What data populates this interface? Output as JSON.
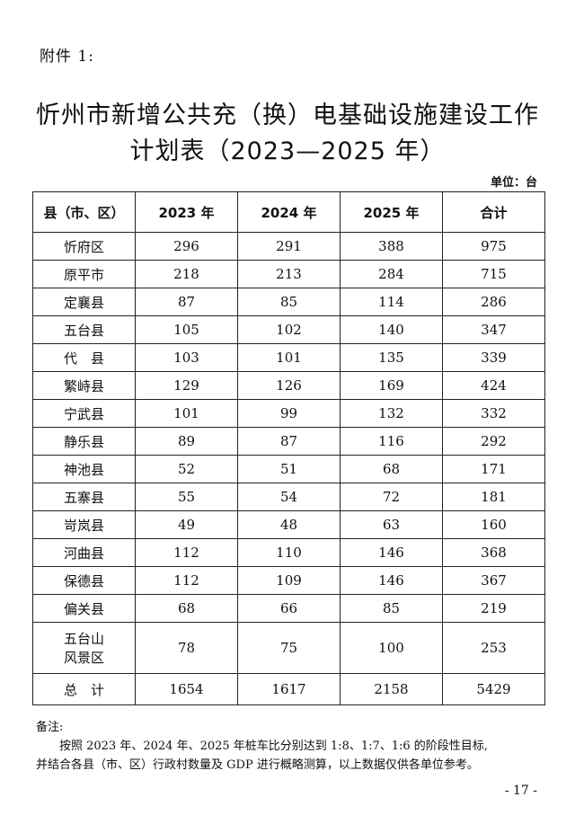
{
  "attachment_label": "附件 1:",
  "title_line1": "忻州市新增公共充（换）电基础设施建设工作",
  "title_line2": "计划表（2023—2025 年）",
  "unit": "单位：台",
  "table": {
    "headers": [
      "县（市、区）",
      "2023 年",
      "2024 年",
      "2025 年",
      "合计"
    ],
    "rows": [
      {
        "name": "忻府区",
        "y2023": "296",
        "y2024": "291",
        "y2025": "388",
        "total": "975"
      },
      {
        "name": "原平市",
        "y2023": "218",
        "y2024": "213",
        "y2025": "284",
        "total": "715"
      },
      {
        "name": "定襄县",
        "y2023": "87",
        "y2024": "85",
        "y2025": "114",
        "total": "286"
      },
      {
        "name": "五台县",
        "y2023": "105",
        "y2024": "102",
        "y2025": "140",
        "total": "347"
      },
      {
        "name": "代　县",
        "y2023": "103",
        "y2024": "101",
        "y2025": "135",
        "total": "339"
      },
      {
        "name": "繁峙县",
        "y2023": "129",
        "y2024": "126",
        "y2025": "169",
        "total": "424"
      },
      {
        "name": "宁武县",
        "y2023": "101",
        "y2024": "99",
        "y2025": "132",
        "total": "332"
      },
      {
        "name": "静乐县",
        "y2023": "89",
        "y2024": "87",
        "y2025": "116",
        "total": "292"
      },
      {
        "name": "神池县",
        "y2023": "52",
        "y2024": "51",
        "y2025": "68",
        "total": "171"
      },
      {
        "name": "五寨县",
        "y2023": "55",
        "y2024": "54",
        "y2025": "72",
        "total": "181"
      },
      {
        "name": "岢岚县",
        "y2023": "49",
        "y2024": "48",
        "y2025": "63",
        "total": "160"
      },
      {
        "name": "河曲县",
        "y2023": "112",
        "y2024": "110",
        "y2025": "146",
        "total": "368"
      },
      {
        "name": "保德县",
        "y2023": "112",
        "y2024": "109",
        "y2025": "146",
        "total": "367"
      },
      {
        "name": "偏关县",
        "y2023": "68",
        "y2024": "66",
        "y2025": "85",
        "total": "219"
      },
      {
        "name_line1": "五台山",
        "name_line2": "风景区",
        "y2023": "78",
        "y2024": "75",
        "y2025": "100",
        "total": "253"
      }
    ],
    "total_row": {
      "name": "总　计",
      "y2023": "1654",
      "y2024": "1617",
      "y2025": "2158",
      "total": "5429"
    }
  },
  "notes": {
    "label": "备注:",
    "line1": "按照 2023 年、2024 年、2025 年桩车比分别达到 1:8、1:7、1:6 的阶段性目标,",
    "line2": "并结合各县（市、区）行政村数量及 GDP 进行概略测算，以上数据仅供各单位参考。"
  },
  "page_number": "- 17 -"
}
